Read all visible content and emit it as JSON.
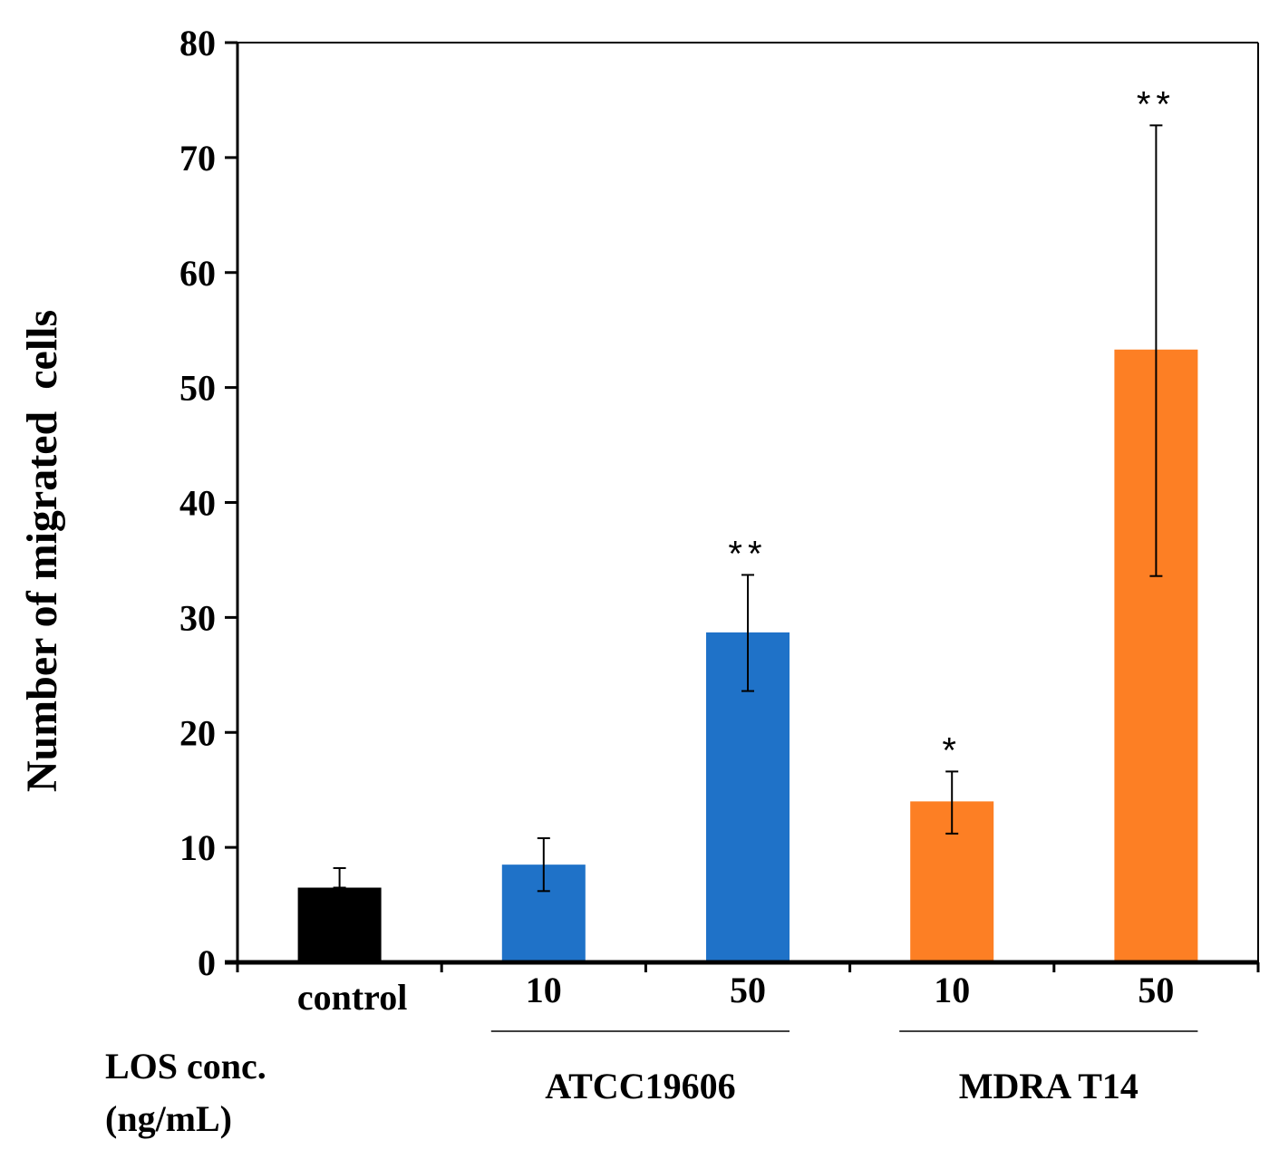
{
  "chart_data": {
    "type": "bar",
    "ylabel": "Number of migrated  cells",
    "ylim": [
      0,
      80
    ],
    "yticks": [
      "0",
      "10",
      "20",
      "30",
      "40",
      "50",
      "60",
      "70",
      "80"
    ],
    "categories": [
      "control",
      "10",
      "50",
      "10",
      "50"
    ],
    "values": [
      6.5,
      8.5,
      28.7,
      14.0,
      53.3
    ],
    "errors_upper": [
      8.2,
      10.8,
      33.7,
      16.6,
      72.8
    ],
    "errors_lower": [
      6.5,
      6.2,
      23.6,
      11.2,
      33.6
    ],
    "significance": [
      "",
      "",
      "**",
      "*",
      "**"
    ],
    "colors": [
      "#000000",
      "#1f72c8",
      "#1f72c8",
      "#fd7f24",
      "#fd7f24"
    ],
    "groups": [
      {
        "label": "ATCC19606",
        "categories": [
          1,
          2
        ]
      },
      {
        "label": "MDRA T14",
        "categories": [
          3,
          4
        ]
      }
    ],
    "xlabel_line1": "LOS conc.",
    "xlabel_line2": "(ng/mL)"
  }
}
